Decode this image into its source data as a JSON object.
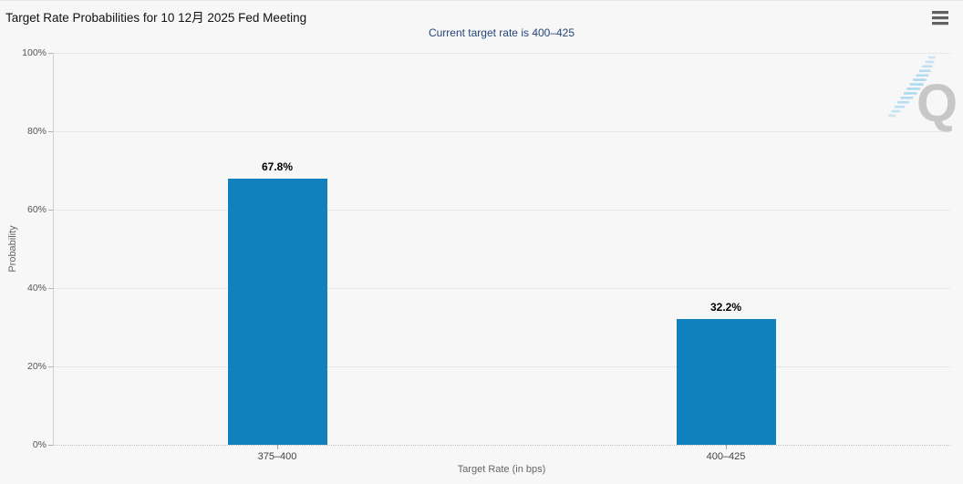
{
  "chart": {
    "title": "Target Rate Probabilities for 10 12月 2025 Fed Meeting",
    "subtitle": "Current target rate is 400–425",
    "watermark_letter": "Q",
    "colors": {
      "bar": "#1181be",
      "subtitle_text": "#25477b",
      "background": "#f7f7f7",
      "title_text": "#111111",
      "axis_label_text": "#555555",
      "watermark_gray": "#c7c7c7",
      "watermark_blue": "#a9d7f0"
    }
  },
  "chart_data": {
    "type": "bar",
    "title": "Target Rate Probabilities for 10 12月 2025 Fed Meeting",
    "subtitle": "Current target rate is 400–425",
    "categories": [
      "375–400",
      "400–425"
    ],
    "values": [
      67.8,
      32.2
    ],
    "data_labels": [
      "67.8%",
      "32.2%"
    ],
    "xlabel": "Target Rate (in bps)",
    "ylabel": "Probability",
    "ylim": [
      0,
      100
    ],
    "ytick_step": 20,
    "ytick_labels": [
      "0%",
      "20%",
      "40%",
      "60%",
      "80%",
      "100%"
    ],
    "grid": "horizontal-dotted",
    "legend": "none",
    "bar_color": "#1181be"
  }
}
